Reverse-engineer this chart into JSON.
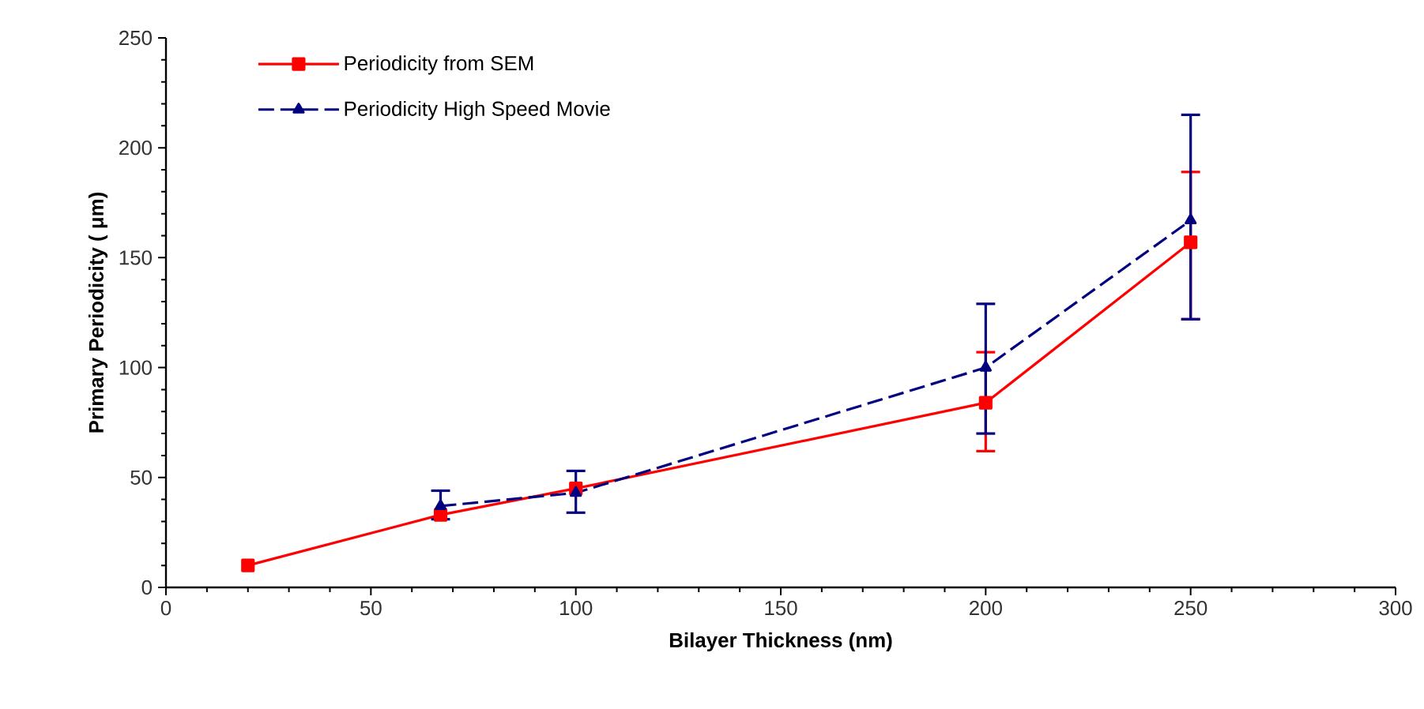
{
  "chart_data": {
    "type": "line",
    "xlabel": "Bilayer Thickness (nm)",
    "ylabel": "Primary Periodicity ( μm)",
    "xlim": [
      0,
      300
    ],
    "xticks": [
      0,
      50,
      100,
      150,
      200,
      250,
      300
    ],
    "ylim": [
      0,
      250
    ],
    "yticks": [
      0,
      50,
      100,
      150,
      200,
      250
    ],
    "grid": false,
    "legend": "top left",
    "series": [
      {
        "name": "Periodicity from SEM",
        "color": "#ff0000",
        "marker": "square",
        "line_style": "solid",
        "x": [
          20,
          67,
          100,
          200,
          250
        ],
        "values": [
          10,
          33,
          45,
          84,
          157
        ],
        "errors": [
          null,
          null,
          null,
          [
            62,
            107
          ],
          [
            122,
            189
          ]
        ]
      },
      {
        "name": "Periodicity High Speed Movie",
        "color": "#000080",
        "marker": "triangle",
        "line_style": "dashed",
        "x": [
          67,
          100,
          200,
          250
        ],
        "values": [
          37,
          43,
          100,
          167
        ],
        "errors": [
          [
            31,
            44
          ],
          [
            34,
            53
          ],
          [
            70,
            129
          ],
          [
            122,
            215
          ]
        ]
      }
    ]
  }
}
